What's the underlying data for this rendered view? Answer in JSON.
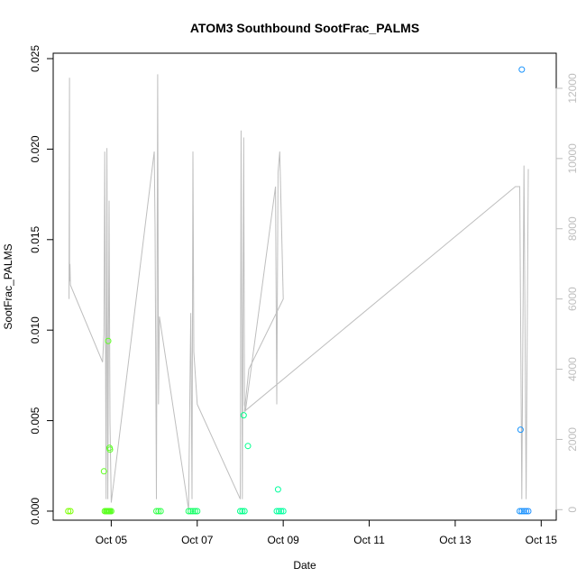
{
  "chart_data": {
    "type": "scatter",
    "title": "ATOM3 Southbound SootFrac_PALMS",
    "xlabel": "Date",
    "ylabel": "SootFrac_PALMS",
    "x_ticks": [
      "Oct 05",
      "Oct 07",
      "Oct 09",
      "Oct 11",
      "Oct 13",
      "Oct 15"
    ],
    "x_tick_values": [
      5,
      7,
      9,
      11,
      13,
      15
    ],
    "xlim": [
      3.65,
      15.35
    ],
    "ylim": [
      -0.0005,
      0.0253
    ],
    "y_ticks": [
      "0.000",
      "0.005",
      "0.010",
      "0.015",
      "0.020",
      "0.025"
    ],
    "y_tick_values": [
      0,
      0.005,
      0.01,
      0.015,
      0.02,
      0.025
    ],
    "y2_ticks": [
      "0",
      "2000",
      "4000",
      "6000",
      "8000",
      "10000",
      "12000"
    ],
    "y2_tick_values": [
      0,
      2000,
      4000,
      6000,
      8000,
      10000,
      12000
    ],
    "y2_lim": [
      -300,
      13000
    ],
    "colors": {
      "altitude_line": "#bebebe",
      "point_gradient": [
        "#7cff00",
        "#00ff7f",
        "#00ffd0",
        "#1e90ff"
      ]
    },
    "series": [
      {
        "role": "points",
        "x": [
          4.0,
          4.05,
          4.85,
          4.88,
          4.9,
          4.92,
          4.93,
          4.95,
          4.96,
          4.97,
          5.0,
          4.83,
          4.93,
          4.96,
          4.97,
          6.05,
          6.1,
          6.15,
          6.8,
          6.85,
          6.9,
          6.95,
          7.0,
          8.0,
          8.05,
          8.1,
          8.08,
          8.18,
          8.85,
          8.9,
          8.95,
          9.0,
          8.88,
          14.5,
          14.55,
          14.6,
          14.65,
          14.7,
          14.52,
          14.55
        ],
        "y": [
          0,
          0,
          0,
          0,
          0,
          0,
          0,
          0,
          0,
          0,
          0,
          0.0022,
          0.0094,
          0.0035,
          0.0034,
          0,
          0,
          0,
          0,
          0,
          0,
          0,
          0,
          0,
          0,
          0,
          0.0053,
          0.0036,
          0,
          0,
          0,
          0,
          0.0012,
          0,
          0,
          0,
          0,
          0,
          0.0045,
          0.0244
        ]
      },
      {
        "role": "altitude_line",
        "x": [
          4.02,
          4.02,
          4.03,
          4.03,
          4.04,
          4.05,
          4.8,
          4.83,
          4.85,
          4.88,
          4.9,
          4.92,
          4.95,
          4.97,
          5.0,
          6.0,
          6.02,
          6.05,
          6.08,
          6.1,
          6.12,
          6.8,
          6.85,
          6.88,
          6.9,
          6.92,
          7.0,
          8.0,
          8.02,
          8.05,
          8.08,
          8.1,
          8.12,
          8.82,
          8.85,
          8.88,
          8.92,
          9.0,
          8.6,
          8.2,
          8.1,
          14.4,
          14.5,
          14.55,
          14.6,
          14.65,
          14.7
        ],
        "y": [
          6000,
          6500,
          12300,
          6500,
          7000,
          6400,
          4200,
          5000,
          10200,
          300,
          10300,
          300,
          8800,
          2500,
          200,
          10200,
          8000,
          300,
          12400,
          3000,
          5500,
          0,
          5600,
          300,
          10200,
          4500,
          3000,
          300,
          10800,
          300,
          10600,
          3000,
          2800,
          9200,
          3000,
          9600,
          10200,
          6000,
          5000,
          4000,
          2800,
          9200,
          9200,
          300,
          9800,
          300,
          9700
        ]
      }
    ]
  }
}
